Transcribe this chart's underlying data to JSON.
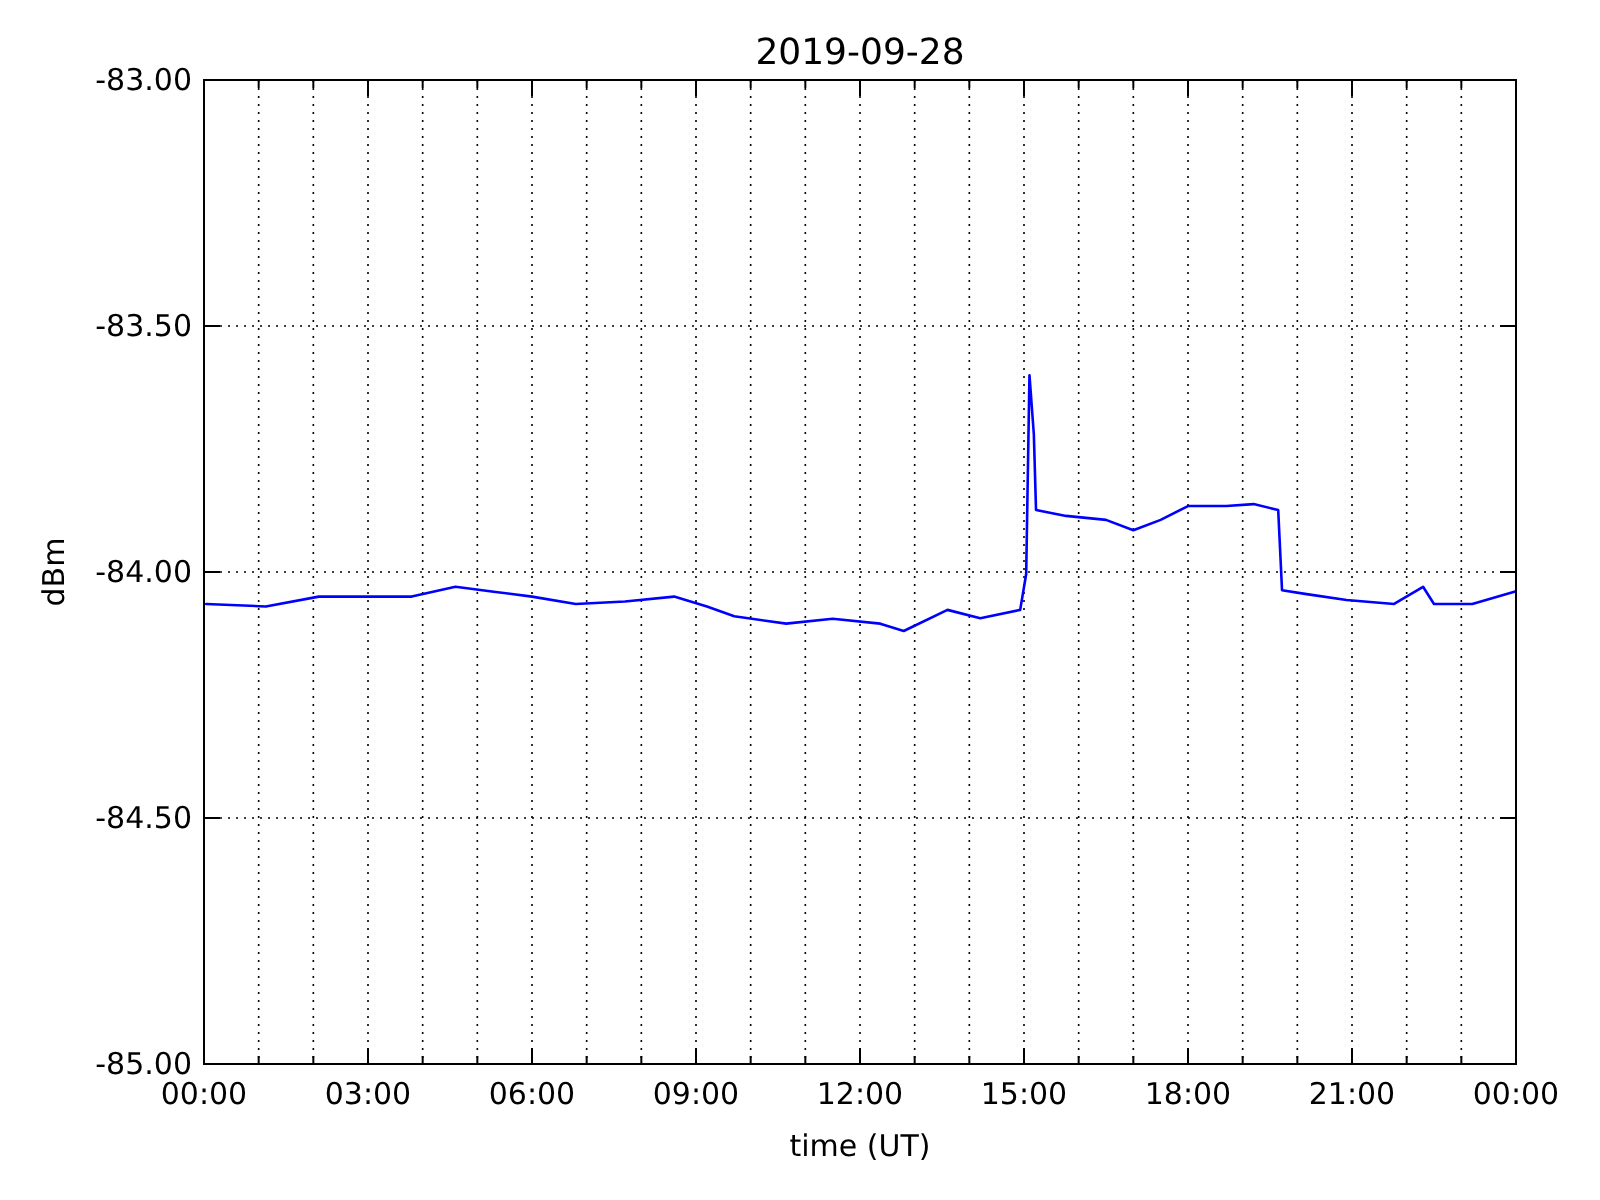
{
  "chart_data": {
    "type": "line",
    "title": "2019-09-28",
    "xlabel": "time (UT)",
    "ylabel": "dBm",
    "xlim": [
      0,
      24
    ],
    "ylim": [
      -85,
      -83
    ],
    "xticks": [
      {
        "value": 0,
        "label": "00:00"
      },
      {
        "value": 1,
        "label": null
      },
      {
        "value": 2,
        "label": null
      },
      {
        "value": 3,
        "label": "03:00"
      },
      {
        "value": 4,
        "label": null
      },
      {
        "value": 5,
        "label": null
      },
      {
        "value": 6,
        "label": "06:00"
      },
      {
        "value": 7,
        "label": null
      },
      {
        "value": 8,
        "label": null
      },
      {
        "value": 9,
        "label": "09:00"
      },
      {
        "value": 10,
        "label": null
      },
      {
        "value": 11,
        "label": null
      },
      {
        "value": 12,
        "label": "12:00"
      },
      {
        "value": 13,
        "label": null
      },
      {
        "value": 14,
        "label": null
      },
      {
        "value": 15,
        "label": "15:00"
      },
      {
        "value": 16,
        "label": null
      },
      {
        "value": 17,
        "label": null
      },
      {
        "value": 18,
        "label": "18:00"
      },
      {
        "value": 19,
        "label": null
      },
      {
        "value": 20,
        "label": null
      },
      {
        "value": 21,
        "label": "21:00"
      },
      {
        "value": 22,
        "label": null
      },
      {
        "value": 23,
        "label": null
      },
      {
        "value": 24,
        "label": "00:00"
      }
    ],
    "yticks": [
      {
        "value": -85,
        "label": "-85.00"
      },
      {
        "value": -84.5,
        "label": "-84.50"
      },
      {
        "value": -84,
        "label": "-84.00"
      },
      {
        "value": -83.5,
        "label": "-83.50"
      },
      {
        "value": -83,
        "label": "-83.00"
      }
    ],
    "grid": true,
    "line_style": "solid",
    "marker": "none",
    "series": [
      {
        "color": "#0000ff",
        "x": [
          0.04,
          1.13,
          2.1,
          3.1,
          3.8,
          4.6,
          5.3,
          6.0,
          6.8,
          7.7,
          8.6,
          9.2,
          9.7,
          10.65,
          11.5,
          12.37,
          12.8,
          13.6,
          14.2,
          14.93,
          15.04,
          15.1,
          15.18,
          15.22,
          15.77,
          16.5,
          17.0,
          17.5,
          18.0,
          18.7,
          19.2,
          19.65,
          19.72,
          20.17,
          20.9,
          21.77,
          22.3,
          22.5,
          23.2,
          23.97
        ],
        "values": [
          -84.065,
          -84.07,
          -84.05,
          -84.05,
          -84.05,
          -84.03,
          -84.04,
          -84.05,
          -84.065,
          -84.06,
          -84.05,
          -84.07,
          -84.09,
          -84.105,
          -84.095,
          -84.105,
          -84.12,
          -84.077,
          -84.094,
          -84.077,
          -84.004,
          -83.6,
          -83.72,
          -83.874,
          -83.886,
          -83.894,
          -83.915,
          -83.894,
          -83.866,
          -83.866,
          -83.862,
          -83.874,
          -84.037,
          -84.045,
          -84.057,
          -84.065,
          -84.03,
          -84.065,
          -84.065,
          -84.04
        ]
      }
    ]
  }
}
